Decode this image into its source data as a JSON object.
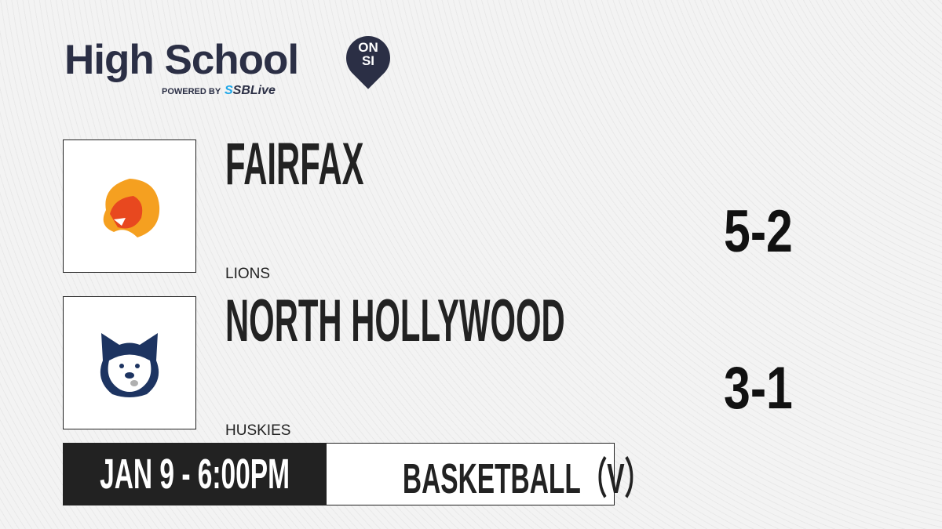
{
  "brand": {
    "title": "High School",
    "badge_top": "ON",
    "badge_bottom": "SI",
    "powered_by": "POWERED BY",
    "partner_prefix": "S",
    "partner": "SBLive",
    "colors": {
      "navy": "#2b2f45",
      "accent": "#1ea7e8"
    }
  },
  "teams": [
    {
      "name": "FAIRFAX",
      "mascot": "LIONS",
      "record": "5-2",
      "logo_icon": "lion-icon",
      "color": "#e8481f"
    },
    {
      "name": "NORTH HOLLYWOOD",
      "mascot": "HUSKIES",
      "record": "3-1",
      "logo_icon": "husky-icon",
      "color": "#1d3461"
    }
  ],
  "game": {
    "datetime": "JAN 9 - 6:00PM",
    "sport": "BASKETBALL（V）"
  }
}
